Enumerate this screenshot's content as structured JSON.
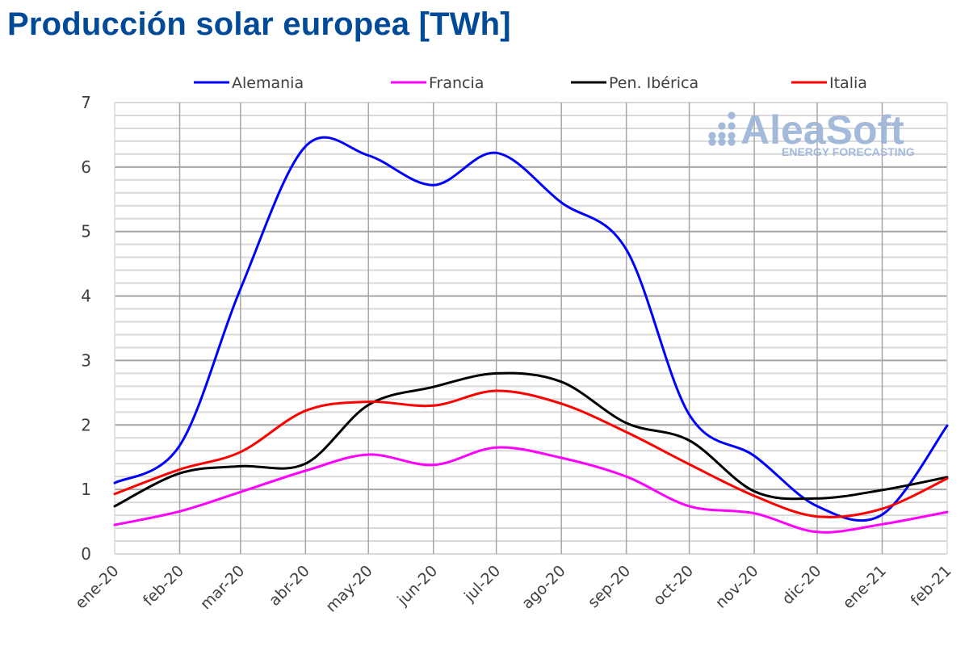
{
  "title": "Producción solar europea [TWh]",
  "logo": {
    "name": "AleaSoft",
    "tagline": "ENERGY FORECASTING",
    "color": "#9fb7da"
  },
  "chart_data": {
    "type": "line",
    "title": "Producción solar europea [TWh]",
    "xlabel": "",
    "ylabel": "",
    "ylim": [
      0,
      7
    ],
    "y_ticks": [
      "0",
      "1",
      "2",
      "3",
      "4",
      "5",
      "6",
      "7"
    ],
    "y_minor_step": 0.2,
    "grid": true,
    "smoothed": true,
    "legend_position": "top",
    "categories": [
      "ene-20",
      "feb-20",
      "mar-20",
      "abr-20",
      "may-20",
      "jun-20",
      "jul-20",
      "ago-20",
      "sep-20",
      "oct-20",
      "nov-20",
      "dic-20",
      "ene-21",
      "feb-21"
    ],
    "x_dates": [
      "2020-01-01",
      "2020-02-01",
      "2020-03-01",
      "2020-04-01",
      "2020-05-01",
      "2020-06-01",
      "2020-07-01",
      "2020-08-01",
      "2020-09-01",
      "2020-10-01",
      "2020-11-01",
      "2020-12-01",
      "2021-01-01",
      "2021-02-01"
    ],
    "series": [
      {
        "name": "Alemania",
        "color": "#0000ff",
        "values": [
          1.1,
          1.68,
          4.11,
          6.32,
          6.18,
          5.72,
          6.22,
          5.45,
          4.72,
          2.16,
          1.52,
          0.74,
          0.61,
          1.99
        ]
      },
      {
        "name": "Francia",
        "color": "#ff00ff",
        "values": [
          0.45,
          0.66,
          0.96,
          1.29,
          1.54,
          1.38,
          1.65,
          1.49,
          1.2,
          0.74,
          0.63,
          0.34,
          0.46,
          0.65
        ]
      },
      {
        "name": "Pen. Ibérica",
        "color": "#000000",
        "values": [
          0.74,
          1.25,
          1.36,
          1.4,
          2.31,
          2.59,
          2.8,
          2.67,
          2.03,
          1.76,
          0.97,
          0.86,
          0.99,
          1.19
        ]
      },
      {
        "name": "Italia",
        "color": "#ff0000",
        "values": [
          0.93,
          1.31,
          1.58,
          2.22,
          2.36,
          2.3,
          2.53,
          2.33,
          1.89,
          1.39,
          0.9,
          0.58,
          0.7,
          1.17
        ]
      }
    ]
  }
}
